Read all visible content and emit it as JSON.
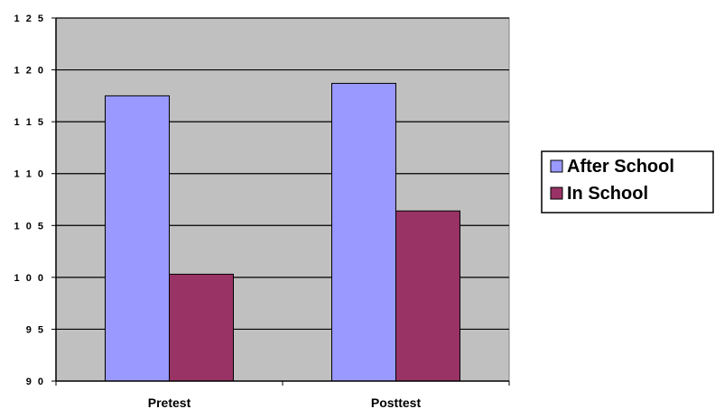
{
  "chart_data": {
    "type": "bar",
    "title": "",
    "xlabel": "",
    "ylabel": "",
    "categories": [
      "Pretest",
      "Posttest"
    ],
    "series": [
      {
        "name": "After School",
        "values": [
          117.5,
          118.7
        ],
        "color": "#9999ff"
      },
      {
        "name": "In School",
        "values": [
          100.3,
          106.4
        ],
        "color": "#993366"
      }
    ],
    "ylim": [
      90,
      125
    ],
    "yticks": [
      90,
      95,
      100,
      105,
      110,
      115,
      120,
      125
    ],
    "ytick_labels": [
      "9 0",
      "9 5",
      "1 0 0",
      "1 0 5",
      "1 1 0",
      "1 1 5",
      "1 2 0",
      "1 2 5"
    ],
    "grid": true,
    "legend_position": "right",
    "plot_background": "#c0c0c0"
  }
}
